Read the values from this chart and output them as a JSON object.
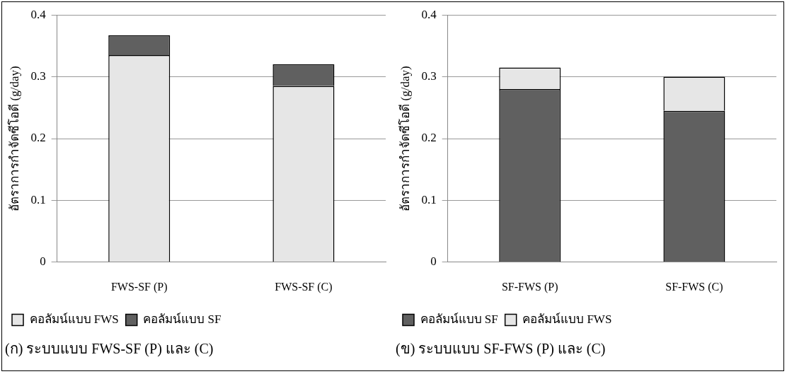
{
  "chart_data": [
    {
      "type": "bar",
      "title": "(ก) ระบบแบบ FWS-SF (P) และ (C)",
      "ylabel": "อัตราการกำจัดซีโอดี (g/day)",
      "categories": [
        "FWS-SF (P)",
        "FWS-SF (C)"
      ],
      "stacked": true,
      "series": [
        {
          "name": "คอลัมน์แบบ FWS",
          "color": "#e6e6e6",
          "values": [
            0.335,
            0.285
          ]
        },
        {
          "name": "คอลัมน์แบบ SF",
          "color": "#606060",
          "values": [
            0.032,
            0.035
          ]
        }
      ],
      "ylim": [
        0,
        0.4
      ],
      "yticks": [
        0,
        0.1,
        0.2,
        0.3,
        0.4
      ],
      "grid": "y",
      "legend": "bottom"
    },
    {
      "type": "bar",
      "title": "(ข) ระบบแบบ SF-FWS (P) และ (C)",
      "ylabel": "อัตราการกำจัดซีโอดี (g/day)",
      "categories": [
        "SF-FWS (P)",
        "SF-FWS (C)"
      ],
      "stacked": true,
      "series": [
        {
          "name": "คอลัมน์แบบ SF",
          "color": "#606060",
          "values": [
            0.28,
            0.245
          ]
        },
        {
          "name": "คอลัมน์แบบ FWS",
          "color": "#e6e6e6",
          "values": [
            0.035,
            0.055
          ]
        }
      ],
      "ylim": [
        0,
        0.4
      ],
      "yticks": [
        0,
        0.1,
        0.2,
        0.3,
        0.4
      ],
      "grid": "y",
      "legend": "bottom"
    }
  ]
}
